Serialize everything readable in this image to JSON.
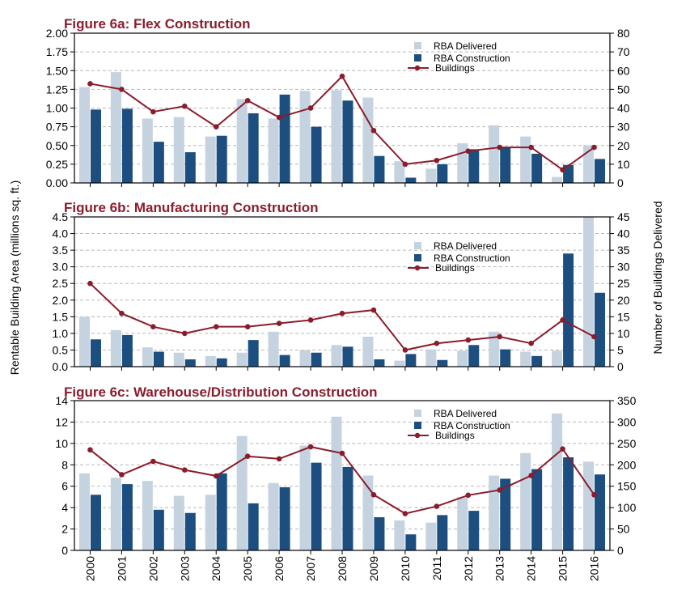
{
  "colors": {
    "delivered": "#c5d3e0",
    "construction": "#1c4f80",
    "buildings": "#8b1c2c",
    "title": "#8b1c2c",
    "grid": "#b8b8b8"
  },
  "y_left_label": "Rentable Building Area (millions sq. ft.)",
  "y_right_label": "Number of Buildings Delivered",
  "legend": {
    "delivered": "RBA Delivered",
    "construction": "RBA Construction",
    "buildings": "Buildings"
  },
  "chart_data": [
    {
      "type": "bar",
      "title": "Figure 6a:  Flex Construction",
      "categories": [
        "2000",
        "2001",
        "2002",
        "2003",
        "2004",
        "2005",
        "2006",
        "2007",
        "2008",
        "2009",
        "2010",
        "2011",
        "2012",
        "2013",
        "2014",
        "2015",
        "2016"
      ],
      "ylim": [
        0,
        2
      ],
      "yticks": [
        "0.00",
        "0.25",
        "0.50",
        "0.75",
        "1.00",
        "1.25",
        "1.50",
        "1.75",
        "2.00"
      ],
      "y2lim": [
        0,
        80
      ],
      "y2ticks": [
        "0",
        "10",
        "20",
        "30",
        "40",
        "50",
        "60",
        "70",
        "80"
      ],
      "grid": true,
      "legend_position": "top-right",
      "series": [
        {
          "name": "RBA Delivered",
          "axis": "left",
          "values": [
            1.28,
            1.48,
            0.86,
            0.88,
            0.62,
            1.12,
            0.86,
            1.23,
            1.24,
            1.14,
            0.29,
            0.19,
            0.53,
            0.77,
            0.62,
            0.08,
            0.5
          ]
        },
        {
          "name": "RBA Construction",
          "axis": "left",
          "values": [
            0.98,
            0.99,
            0.55,
            0.41,
            0.63,
            0.93,
            1.18,
            0.75,
            1.1,
            0.36,
            0.07,
            0.25,
            0.45,
            0.48,
            0.39,
            0.24,
            0.32
          ]
        },
        {
          "name": "Buildings",
          "axis": "right",
          "type": "line",
          "values": [
            53,
            50,
            38,
            41,
            30,
            44,
            35,
            40,
            57,
            28,
            10,
            12,
            17,
            19,
            19,
            7,
            19
          ]
        }
      ]
    },
    {
      "type": "bar",
      "title": "Figure 6b:  Manufacturing Construction",
      "categories": [
        "2000",
        "2001",
        "2002",
        "2003",
        "2004",
        "2005",
        "2006",
        "2007",
        "2008",
        "2009",
        "2010",
        "2011",
        "2012",
        "2013",
        "2014",
        "2015",
        "2016"
      ],
      "ylim": [
        0,
        4.5
      ],
      "yticks": [
        "0.0",
        "0.5",
        "1.0",
        "1.5",
        "2.0",
        "2.5",
        "3.0",
        "3.5",
        "4.0",
        "4.5"
      ],
      "y2lim": [
        0,
        45
      ],
      "y2ticks": [
        "0",
        "5",
        "10",
        "15",
        "20",
        "25",
        "30",
        "35",
        "40",
        "45"
      ],
      "grid": true,
      "legend_position": "center-right",
      "series": [
        {
          "name": "RBA Delivered",
          "axis": "left",
          "values": [
            1.5,
            1.1,
            0.58,
            0.42,
            0.32,
            0.42,
            1.05,
            0.5,
            0.65,
            0.9,
            0.18,
            0.52,
            0.48,
            1.05,
            0.45,
            0.48,
            4.55
          ]
        },
        {
          "name": "RBA Construction",
          "axis": "left",
          "values": [
            0.82,
            0.95,
            0.45,
            0.22,
            0.25,
            0.8,
            0.35,
            0.42,
            0.6,
            0.22,
            0.38,
            0.2,
            0.65,
            0.52,
            0.32,
            3.4,
            2.22
          ]
        },
        {
          "name": "Buildings",
          "axis": "right",
          "type": "line",
          "values": [
            25,
            16,
            12,
            10,
            12,
            12,
            13,
            14,
            16,
            17,
            5,
            7,
            8,
            9,
            7,
            14,
            9
          ]
        }
      ]
    },
    {
      "type": "bar",
      "title": "Figure 6c:  Warehouse/Distribution Construction",
      "categories": [
        "2000",
        "2001",
        "2002",
        "2003",
        "2004",
        "2005",
        "2006",
        "2007",
        "2008",
        "2009",
        "2010",
        "2011",
        "2012",
        "2013",
        "2014",
        "2015",
        "2016"
      ],
      "ylim": [
        0,
        14
      ],
      "yticks": [
        "0",
        "2",
        "4",
        "6",
        "8",
        "10",
        "12",
        "14"
      ],
      "y2lim": [
        0,
        350
      ],
      "y2ticks": [
        "0",
        "50",
        "100",
        "150",
        "200",
        "250",
        "300",
        "350"
      ],
      "grid": true,
      "legend_position": "top-right",
      "series": [
        {
          "name": "RBA Delivered",
          "axis": "left",
          "values": [
            7.2,
            6.8,
            6.5,
            5.1,
            5.2,
            10.7,
            6.3,
            9.8,
            12.5,
            7.0,
            2.8,
            2.6,
            5.0,
            7.0,
            9.1,
            12.8,
            8.3
          ]
        },
        {
          "name": "RBA Construction",
          "axis": "left",
          "values": [
            5.2,
            6.2,
            3.8,
            3.5,
            7.2,
            4.4,
            5.9,
            8.2,
            7.8,
            3.1,
            1.5,
            3.3,
            3.7,
            6.7,
            7.6,
            8.7,
            7.1
          ]
        },
        {
          "name": "Buildings",
          "axis": "right",
          "type": "line",
          "values": [
            235,
            177,
            208,
            188,
            174,
            220,
            214,
            242,
            227,
            130,
            86,
            103,
            129,
            141,
            175,
            237,
            130
          ]
        }
      ]
    }
  ]
}
